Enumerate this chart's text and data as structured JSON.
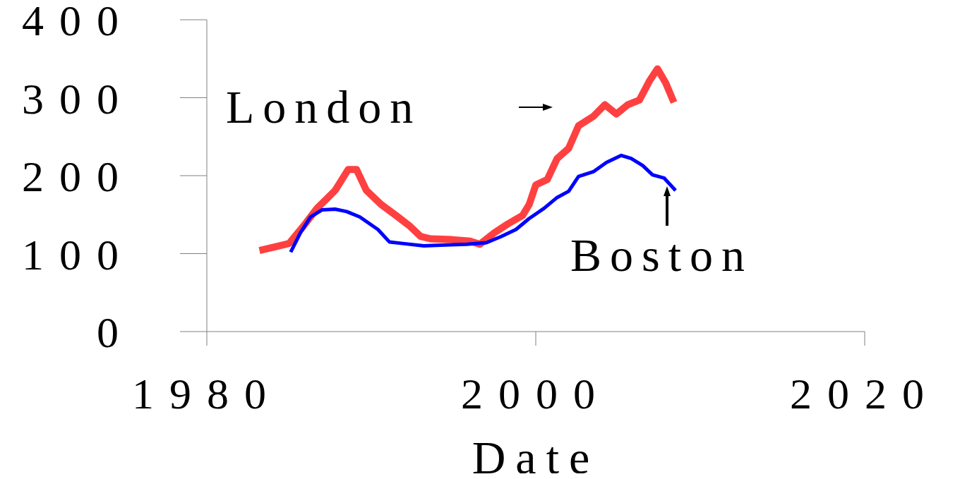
{
  "chart_data": {
    "type": "line",
    "xlabel": "Date",
    "xlim": [
      1980,
      2020
    ],
    "xticks": [
      1980,
      2000,
      2020
    ],
    "ylim": [
      0,
      400
    ],
    "yticks": [
      0,
      100,
      200,
      300,
      400
    ],
    "marker": "none",
    "line_style": "solid",
    "series": [
      {
        "name": "London",
        "color": "#ff4040",
        "x": [
          1983.2,
          1984.2,
          1985.0,
          1985.9,
          1986.7,
          1987.8,
          1988.6,
          1989.1,
          1989.7,
          1990.6,
          1991.5,
          1992.3,
          1993.0,
          1993.6,
          1994.9,
          1996.0,
          1996.6,
          1997.5,
          1998.3,
          1999.2,
          1999.6,
          2000.0,
          2000.7,
          2001.3,
          2002.0,
          2002.6,
          2003.5,
          2004.2,
          2004.9,
          2005.6,
          2006.3,
          2006.9,
          2007.4,
          2007.9,
          2008.4
        ],
        "values": [
          104,
          109,
          113,
          136,
          158,
          181,
          208,
          208,
          181,
          163,
          149,
          136,
          122,
          119,
          118,
          116,
          112,
          127,
          138,
          149,
          163,
          188,
          195,
          222,
          235,
          264,
          276,
          291,
          279,
          291,
          297,
          321,
          337,
          319,
          294
        ]
      },
      {
        "name": "Boston",
        "color": "#0000ff",
        "x": [
          1985.1,
          1985.7,
          1986.3,
          1987.0,
          1987.8,
          1988.5,
          1989.3,
          1990.4,
          1991.1,
          1991.9,
          1993.2,
          1994.5,
          1995.8,
          1997.0,
          1997.9,
          1998.8,
          1999.6,
          2000.5,
          2001.3,
          2002.0,
          2002.6,
          2003.5,
          2004.3,
          2005.2,
          2005.8,
          2006.5,
          2007.1,
          2007.8,
          2008.5
        ],
        "values": [
          102,
          127,
          147,
          156,
          157,
          154,
          147,
          131,
          115,
          113,
          110,
          111,
          112,
          114,
          122,
          131,
          145,
          158,
          172,
          180,
          199,
          205,
          217,
          226,
          222,
          213,
          201,
          197,
          181
        ]
      }
    ]
  }
}
